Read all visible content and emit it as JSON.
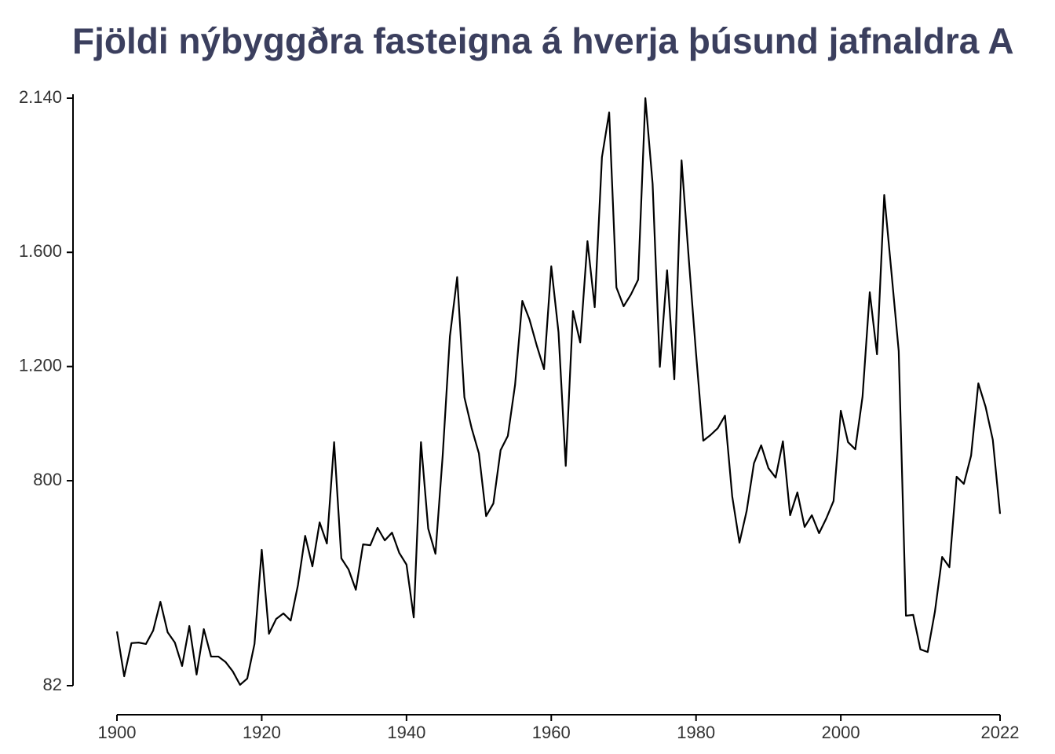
{
  "chart_data": {
    "type": "line",
    "title": "Fjöldi nýbyggðra fasteigna á hverja þúsund jafnaldra A",
    "color": "#000000",
    "x": [
      1900,
      1901,
      1902,
      1903,
      1904,
      1905,
      1906,
      1907,
      1908,
      1909,
      1910,
      1911,
      1912,
      1913,
      1914,
      1915,
      1916,
      1917,
      1918,
      1919,
      1920,
      1921,
      1922,
      1923,
      1924,
      1925,
      1926,
      1927,
      1928,
      1929,
      1930,
      1931,
      1932,
      1933,
      1934,
      1935,
      1936,
      1937,
      1938,
      1939,
      1940,
      1941,
      1942,
      1943,
      1944,
      1945,
      1946,
      1947,
      1948,
      1949,
      1950,
      1951,
      1952,
      1953,
      1954,
      1955,
      1956,
      1957,
      1958,
      1959,
      1960,
      1961,
      1962,
      1963,
      1964,
      1965,
      1966,
      1967,
      1968,
      1969,
      1970,
      1971,
      1972,
      1973,
      1974,
      1975,
      1976,
      1977,
      1978,
      1979,
      1980,
      1981,
      1982,
      1983,
      1984,
      1985,
      1986,
      1987,
      1988,
      1989,
      1990,
      1991,
      1992,
      1993,
      1994,
      1995,
      1996,
      1997,
      1998,
      1999,
      2000,
      2001,
      2002,
      2003,
      2004,
      2005,
      2006,
      2007,
      2008,
      2009,
      2010,
      2011,
      2012,
      2013,
      2014,
      2015,
      2016,
      2017,
      2018,
      2019,
      2020,
      2021,
      2022
    ],
    "values": [
      272,
      115,
      231,
      233,
      228,
      275,
      376,
      269,
      233,
      151,
      291,
      121,
      280,
      184,
      184,
      165,
      132,
      85,
      107,
      228,
      558,
      264,
      316,
      335,
      310,
      434,
      607,
      500,
      654,
      580,
      935,
      528,
      489,
      418,
      577,
      574,
      635,
      591,
      618,
      547,
      506,
      321,
      935,
      632,
      544,
      888,
      1306,
      1513,
      1092,
      984,
      896,
      676,
      720,
      907,
      957,
      1136,
      1430,
      1364,
      1273,
      1191,
      1551,
      1320,
      852,
      1394,
      1284,
      1639,
      1408,
      1933,
      2090,
      1477,
      1411,
      1452,
      1504,
      2140,
      1840,
      1199,
      1537,
      1155,
      1922,
      1576,
      1246,
      940,
      960,
      984,
      1028,
      745,
      583,
      695,
      861,
      924,
      844,
      811,
      938,
      679,
      759,
      638,
      679,
      616,
      668,
      729,
      1045,
      935,
      910,
      1094,
      1460,
      1243,
      1801,
      1529,
      1254,
      327,
      330,
      209,
      200,
      341,
      533,
      497,
      814,
      789,
      888,
      1141,
      1059,
      943,
      684
    ],
    "xlim": [
      1900,
      2022
    ],
    "xticks": [
      1900,
      1920,
      1940,
      1960,
      1980,
      2000,
      2022
    ],
    "ylim": [
      82,
      2140
    ],
    "yticks": [
      82,
      800,
      {
        "value": 1200,
        "label": "1.200"
      },
      {
        "value": 1600,
        "label": "1.600"
      },
      {
        "value": 2140,
        "label": "2.140"
      }
    ]
  }
}
